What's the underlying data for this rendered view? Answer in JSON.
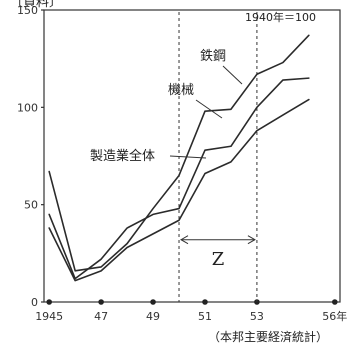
{
  "header": {
    "text": "〔資料〕"
  },
  "chart_data": {
    "type": "line",
    "note": "1940年＝100",
    "source": "（本邦主要経済統計）",
    "x": [
      1945,
      1946,
      1947,
      1948,
      1949,
      1950,
      1951,
      1952,
      1953,
      1954,
      1955,
      1956
    ],
    "x_tick_labels": [
      {
        "x": 1945,
        "label": "1945"
      },
      {
        "x": 1947,
        "label": "47"
      },
      {
        "x": 1949,
        "label": "49"
      },
      {
        "x": 1951,
        "label": "51"
      },
      {
        "x": 1953,
        "label": "53"
      },
      {
        "x": 1956,
        "label": "56年"
      }
    ],
    "y_ticks": [
      0,
      50,
      100,
      150
    ],
    "ylim": [
      0,
      150
    ],
    "xlim": [
      1944.8,
      1956.2
    ],
    "series": [
      {
        "name": "鉄鋼",
        "values": [
          67,
          16,
          18,
          30,
          48,
          65,
          98,
          99,
          117,
          123,
          137,
          null
        ]
      },
      {
        "name": "機械",
        "values": [
          45,
          12,
          22,
          38,
          45,
          48,
          78,
          80,
          100,
          114,
          115,
          null
        ]
      },
      {
        "name": "製造業全体",
        "values": [
          38,
          11,
          16,
          28,
          35,
          42,
          66,
          72,
          88,
          96,
          104,
          null
        ]
      }
    ],
    "period_marker": {
      "label": "Z",
      "from": 1950,
      "to": 1953
    }
  }
}
